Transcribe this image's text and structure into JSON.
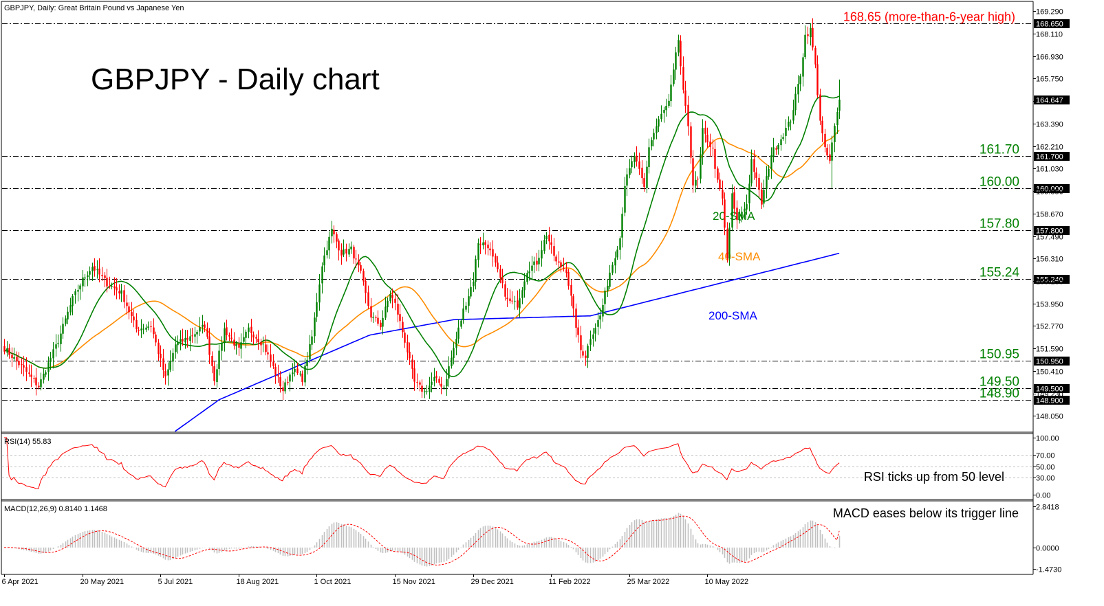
{
  "window": {
    "header": "GBPJPY, Daily:  Great Britain Pound vs Japanese Yen"
  },
  "chart_data": [
    {
      "type": "candlestick",
      "title": "GBPJPY - Daily chart",
      "ylim": [
        147.2,
        169.8
      ],
      "y_ticks": [
        "169.290",
        "168.110",
        "166.930",
        "165.750",
        "164.570",
        "163.390",
        "162.210",
        "161.030",
        "159.850",
        "158.670",
        "157.490",
        "156.310",
        "155.130",
        "153.950",
        "152.770",
        "151.590",
        "150.410",
        "149.230",
        "148.050"
      ],
      "x_tick_labels": [
        "6 Apr 2021",
        "20 May 2021",
        "5 Jul 2021",
        "18 Aug 2021",
        "1 Oct 2021",
        "15 Nov 2021",
        "29 Dec 2021",
        "11 Feb 2022",
        "25 Mar 2022",
        "10 May 2022"
      ],
      "x_tick_index": [
        0,
        32,
        64,
        96,
        128,
        160,
        192,
        224,
        256,
        288
      ],
      "last_price": "164.647",
      "levels": [
        {
          "value": 168.65,
          "axis_label": "168.650",
          "annotation": "168.65 (more-than-6-year high)",
          "color": "#ff0000"
        },
        {
          "value": 161.7,
          "axis_label": "161.700",
          "annotation": "161.70",
          "color": "#008000"
        },
        {
          "value": 160.0,
          "axis_label": "160.000",
          "annotation": "160.00",
          "color": "#008000"
        },
        {
          "value": 157.8,
          "axis_label": "157.800",
          "annotation": "157.80",
          "color": "#008000"
        },
        {
          "value": 155.24,
          "axis_label": "155.240",
          "annotation": "155.24",
          "color": "#008000"
        },
        {
          "value": 150.95,
          "axis_label": "150.950",
          "annotation": "150.95",
          "color": "#008000"
        },
        {
          "value": 149.5,
          "axis_label": "149.500",
          "annotation": "149.50",
          "color": "#008000"
        },
        {
          "value": 148.9,
          "axis_label": "148.900",
          "annotation": "148.90",
          "color": "#008000"
        }
      ],
      "price_path_anchors": [
        [
          0,
          151.6
        ],
        [
          8,
          150.5
        ],
        [
          14,
          149.6
        ],
        [
          22,
          152.0
        ],
        [
          28,
          154.2
        ],
        [
          32,
          155.2
        ],
        [
          36,
          155.9
        ],
        [
          42,
          155.0
        ],
        [
          48,
          154.5
        ],
        [
          54,
          152.6
        ],
        [
          60,
          152.8
        ],
        [
          66,
          150.0
        ],
        [
          70,
          151.8
        ],
        [
          76,
          152.2
        ],
        [
          82,
          152.8
        ],
        [
          86,
          150.0
        ],
        [
          90,
          152.6
        ],
        [
          96,
          151.5
        ],
        [
          100,
          152.6
        ],
        [
          106,
          151.8
        ],
        [
          110,
          150.6
        ],
        [
          114,
          149.4
        ],
        [
          118,
          150.5
        ],
        [
          122,
          150.0
        ],
        [
          126,
          152.2
        ],
        [
          130,
          156.0
        ],
        [
          134,
          157.8
        ],
        [
          138,
          156.6
        ],
        [
          142,
          156.8
        ],
        [
          146,
          155.5
        ],
        [
          150,
          153.3
        ],
        [
          154,
          152.8
        ],
        [
          158,
          154.5
        ],
        [
          160,
          153.9
        ],
        [
          164,
          152.0
        ],
        [
          168,
          149.8
        ],
        [
          172,
          149.3
        ],
        [
          176,
          150.0
        ],
        [
          180,
          149.6
        ],
        [
          184,
          151.6
        ],
        [
          188,
          153.6
        ],
        [
          192,
          155.2
        ],
        [
          194,
          157.2
        ],
        [
          198,
          157.0
        ],
        [
          202,
          155.6
        ],
        [
          206,
          154.1
        ],
        [
          210,
          153.9
        ],
        [
          214,
          155.7
        ],
        [
          218,
          156.1
        ],
        [
          222,
          157.6
        ],
        [
          226,
          156.1
        ],
        [
          230,
          155.7
        ],
        [
          234,
          152.8
        ],
        [
          236,
          151.5
        ],
        [
          238,
          151.2
        ],
        [
          240,
          152.2
        ],
        [
          244,
          153.3
        ],
        [
          248,
          155.6
        ],
        [
          252,
          157.4
        ],
        [
          254,
          160.2
        ],
        [
          258,
          161.7
        ],
        [
          262,
          160.0
        ],
        [
          264,
          162.2
        ],
        [
          268,
          163.6
        ],
        [
          272,
          164.5
        ],
        [
          274,
          166.1
        ],
        [
          276,
          167.8
        ],
        [
          278,
          165.0
        ],
        [
          280,
          163.3
        ],
        [
          282,
          160.2
        ],
        [
          284,
          160.4
        ],
        [
          286,
          163.0
        ],
        [
          290,
          162.0
        ],
        [
          292,
          160.3
        ],
        [
          294,
          159.4
        ],
        [
          296,
          156.3
        ],
        [
          298,
          159.6
        ],
        [
          300,
          158.2
        ],
        [
          304,
          159.2
        ],
        [
          306,
          161.5
        ],
        [
          308,
          160.4
        ],
        [
          310,
          159.2
        ],
        [
          314,
          161.8
        ],
        [
          318,
          162.6
        ],
        [
          322,
          163.6
        ],
        [
          326,
          166.0
        ],
        [
          328,
          168.0
        ],
        [
          330,
          168.3
        ],
        [
          332,
          166.4
        ],
        [
          334,
          163.6
        ],
        [
          336,
          162.0
        ],
        [
          338,
          161.4
        ],
        [
          340,
          163.2
        ],
        [
          342,
          164.65
        ]
      ],
      "overlays": [
        {
          "name": "20-SMA",
          "color": "#008000",
          "period": 20
        },
        {
          "name": "40-SMA",
          "color": "#ff8c00",
          "period": 40
        },
        {
          "name": "200-SMA",
          "color": "#0000ff",
          "period": 200
        }
      ],
      "colors": {
        "up": "#008000",
        "down": "#ff0000"
      }
    },
    {
      "type": "line",
      "title": "RSI(14) 55.83",
      "ylim": [
        0,
        100
      ],
      "y_ticks": [
        "100.00",
        "70.00",
        "50.00",
        "30.00",
        "0.00"
      ],
      "levels": [
        70,
        50,
        30
      ],
      "series": [
        {
          "name": "RSI(14)",
          "last": 55.83,
          "color": "#ff0000"
        }
      ],
      "annotation": "RSI ticks up from 50 level"
    },
    {
      "type": "bar",
      "title": "MACD(12,26,9) 0.8140 1.1468",
      "ylim": [
        -1.473,
        2.8418
      ],
      "y_ticks": [
        "2.8418",
        "0.0000",
        "-1.4730"
      ],
      "series": [
        {
          "name": "MACD",
          "last": 0.814,
          "color": "#c0c0c0"
        },
        {
          "name": "Signal",
          "last": 1.1468,
          "color": "#ff0000"
        }
      ],
      "annotation": "MACD eases below its trigger line"
    }
  ]
}
